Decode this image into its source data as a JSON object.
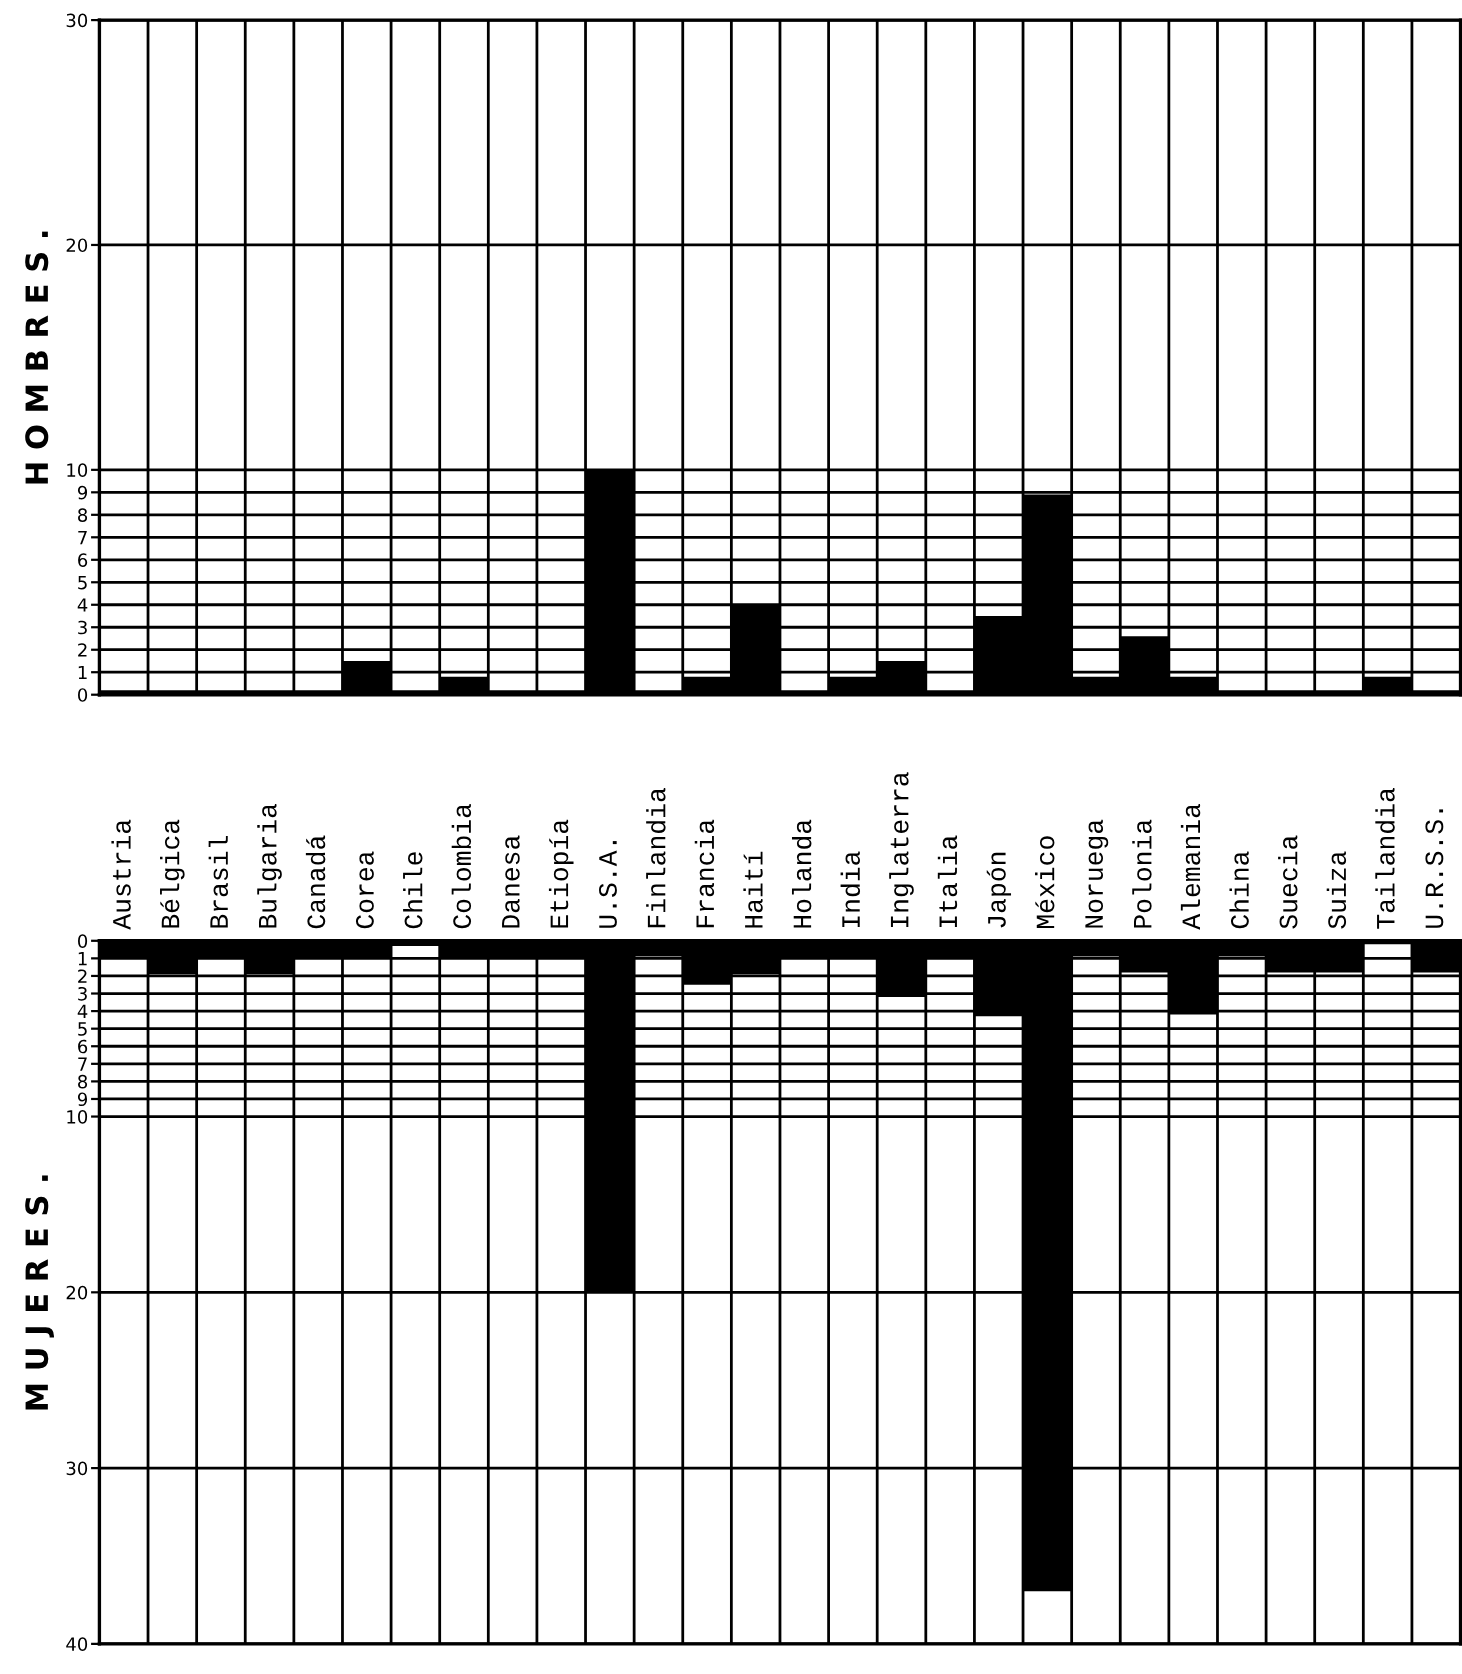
{
  "chart_data": [
    {
      "type": "bar",
      "ylabel": "H O M B R E S .",
      "categories": [
        null,
        null,
        null,
        null,
        null,
        null,
        null,
        null,
        null,
        null,
        null,
        null,
        null,
        null,
        null,
        null,
        null,
        null,
        null,
        null,
        null,
        null,
        null,
        null,
        null,
        null,
        null,
        null
      ],
      "values": [
        0.2,
        0.2,
        0.2,
        0.2,
        0.2,
        1.5,
        0.2,
        0.8,
        0.2,
        0.2,
        10,
        0.2,
        0.8,
        4,
        0.2,
        0.8,
        1.5,
        0.2,
        3.5,
        8.9,
        0.8,
        2.6,
        0.8,
        0.2,
        0.2,
        0.2,
        0.8,
        0.2
      ],
      "color": "#000000",
      "ylim": [
        0,
        30
      ],
      "yticks": [
        0,
        1,
        2,
        3,
        4,
        5,
        6,
        7,
        8,
        9,
        10,
        20,
        30
      ],
      "grid": true,
      "tick_labels": "y"
    },
    {
      "type": "bar",
      "ylabel": "M U J E R E S .",
      "categories": [
        "Austria",
        "Bélgica",
        "Brasil",
        "Bulgaria",
        "Canadá",
        "Corea",
        "Chile",
        "Colombia",
        "Danesa",
        "Etiopía",
        "U.S.A.",
        "Finlandia",
        "Francia",
        "Haití",
        "Holanda",
        "India",
        "Inglaterra",
        "Italia",
        "Japón",
        "México",
        "Noruega",
        "Polonia",
        "Alemania",
        "China",
        "Suecia",
        "Suiza",
        "Tailandia",
        "U.R.S.S."
      ],
      "values": [
        1,
        1.9,
        1,
        1.9,
        1,
        1,
        0.3,
        1,
        1,
        1,
        20,
        0.9,
        2.5,
        1.9,
        1,
        1,
        3.2,
        1,
        4.3,
        37,
        0.9,
        1.8,
        4.2,
        0.9,
        1.8,
        1.8,
        0.2,
        1.8
      ],
      "color": "#000000",
      "ylim": [
        40,
        0
      ],
      "yticks": [
        0,
        1,
        2,
        3,
        4,
        5,
        6,
        7,
        8,
        9,
        10,
        20,
        30,
        40
      ],
      "grid": true
    }
  ]
}
